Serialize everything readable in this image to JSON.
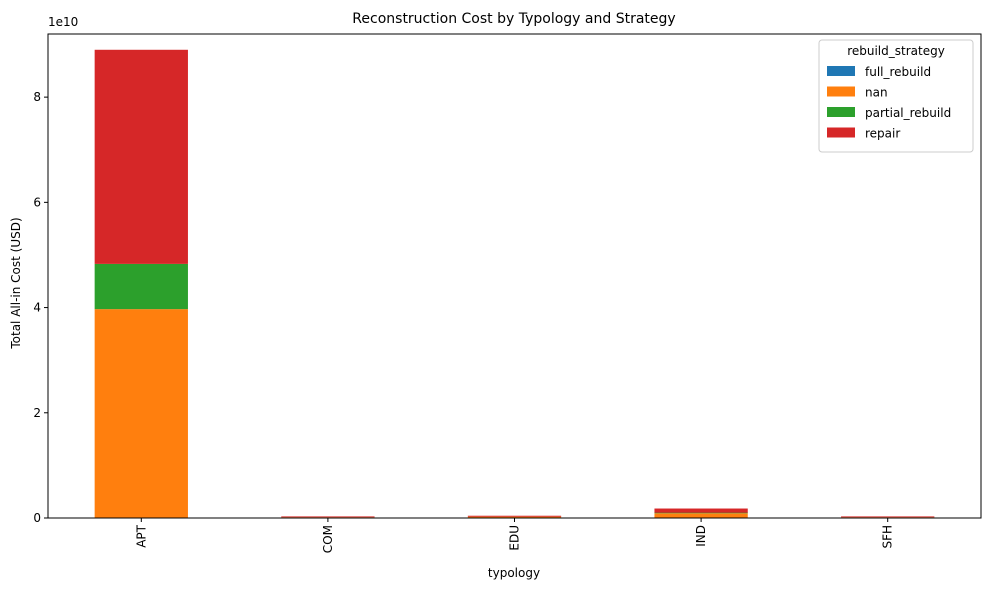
{
  "chart_data": {
    "type": "bar",
    "stacked": true,
    "title": "Reconstruction Cost by Typology and Strategy",
    "xlabel": "typology",
    "ylabel": "Total All-in Cost (USD)",
    "y_scale_label": "1e10",
    "categories": [
      "APT",
      "COM",
      "EDU",
      "IND",
      "SFH"
    ],
    "ylim": [
      0,
      92000000000
    ],
    "yticks": [
      0,
      20000000000,
      40000000000,
      60000000000,
      80000000000
    ],
    "ytick_labels": [
      "0",
      "2",
      "4",
      "6",
      "8"
    ],
    "legend_title": "rebuild_strategy",
    "legend_position": "top-right",
    "grid": false,
    "series": [
      {
        "name": "full_rebuild",
        "color": "#1f77b4",
        "values": [
          0,
          0,
          0,
          0,
          0
        ]
      },
      {
        "name": "nan",
        "color": "#ff7f0e",
        "values": [
          39700000000,
          150000000,
          250000000,
          900000000,
          150000000
        ]
      },
      {
        "name": "partial_rebuild",
        "color": "#2ca02c",
        "values": [
          8600000000,
          0,
          0,
          100000000,
          0
        ]
      },
      {
        "name": "repair",
        "color": "#d62728",
        "values": [
          40700000000,
          80000000,
          180000000,
          800000000,
          80000000
        ]
      }
    ]
  }
}
